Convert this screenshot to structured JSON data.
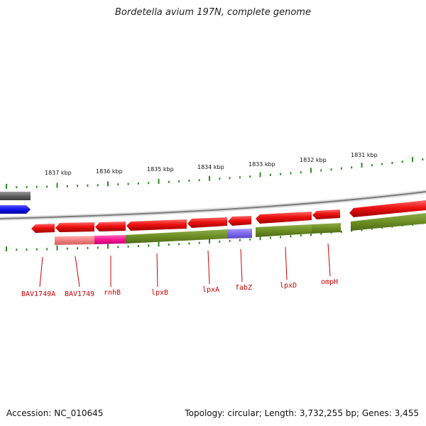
{
  "title": "Bordetella avium 197N, complete genome",
  "scale_labels": [
    "1837 kbp",
    "1836 kbp",
    "1835 kbp",
    "1834 kbp",
    "1833 kbp",
    "1832 kbp",
    "1831 kbp"
  ],
  "genes": [
    "BAV1749A",
    "BAV1749",
    "rnhB",
    "lpxB",
    "lpxA",
    "fabZ",
    "lpxD",
    "ompH"
  ],
  "footer": {
    "accession": "Accession: NC_010645",
    "info": "Topology: circular; Length: 3,732,255 bp; Genes: 3,455"
  },
  "colors": {
    "forward_gene": "#1a1aee",
    "reverse_gene": "#ee1111",
    "cds_olive": "#6b8e23",
    "cds_pink": "#f08080",
    "cds_magenta": "#ff1493",
    "cds_lavender": "#7b68ee",
    "backbone": "#888888",
    "ticks": "#2e8b22"
  }
}
